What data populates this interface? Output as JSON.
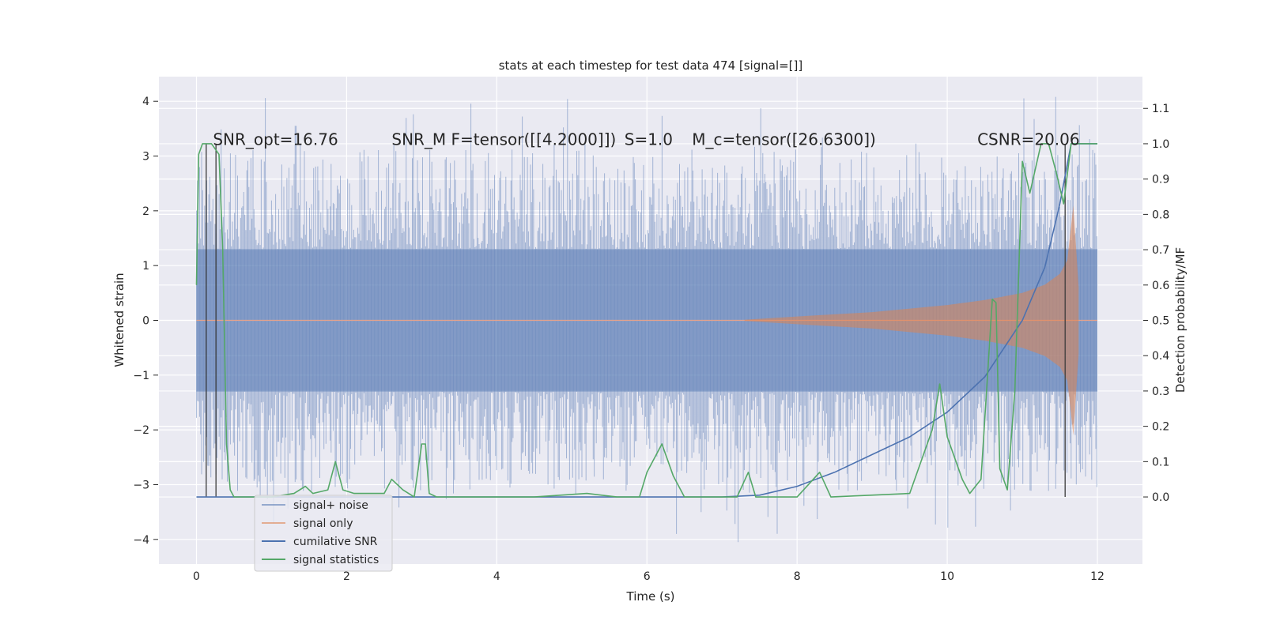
{
  "chart_data": {
    "type": "line",
    "title": "stats at each timestep for test data 474 [signal=[]]",
    "xlabel": "Time (s)",
    "ylabel": "Whitened strain",
    "y2label": "Detection probability/MF",
    "xlim": [
      -0.5,
      12.6
    ],
    "ylim": [
      -4.45,
      4.45
    ],
    "y2lim": [
      -0.19,
      1.19
    ],
    "x_ticks": [
      0,
      2,
      4,
      6,
      8,
      10,
      12
    ],
    "y_ticks": [
      -4,
      -3,
      -2,
      -1,
      0,
      1,
      2,
      3,
      4
    ],
    "y2_ticks": [
      0.0,
      0.1,
      0.2,
      0.3,
      0.4,
      0.5,
      0.6,
      0.7,
      0.8,
      0.9,
      1.0,
      1.1
    ],
    "x_tick_labels": [
      "0",
      "2",
      "4",
      "6",
      "8",
      "10",
      "12"
    ],
    "y_tick_labels": [
      "−4",
      "−3",
      "−2",
      "−1",
      "0",
      "1",
      "2",
      "3",
      "4"
    ],
    "y2_tick_labels": [
      "0.0",
      "0.1",
      "0.2",
      "0.3",
      "0.4",
      "0.5",
      "0.6",
      "0.7",
      "0.8",
      "0.9",
      "1.0",
      "1.1"
    ],
    "grid": true,
    "legend_placement": "lower-left",
    "annotations": [
      {
        "text": "SNR_opt=16.76",
        "x": 0.22
      },
      {
        "text": "SNR_M F=tensor([[4.2000]])",
        "x": 2.6
      },
      {
        "text": "S=1.0",
        "x": 5.7
      },
      {
        "text": "M_c=tensor([26.6300])",
        "x": 6.6
      },
      {
        "text": "CSNR=20.06",
        "x": 10.4
      }
    ],
    "annotation_y": 3.3,
    "vertical_markers_x": [
      0.13,
      0.26,
      11.57
    ],
    "series": [
      {
        "name": "signal+ noise",
        "axis": "left",
        "color": "#4c72b0",
        "envelope": {
          "x_start": 0.0,
          "x_end": 12.0,
          "core_amplitude": 1.3,
          "spike_max": 4.1
        }
      },
      {
        "name": "signal only",
        "axis": "left",
        "color": "#dd8452",
        "envelope": {
          "x": [
            7.3,
            8,
            9,
            10,
            10.5,
            11,
            11.3,
            11.5,
            11.6,
            11.68,
            11.75
          ],
          "amp": [
            0.01,
            0.07,
            0.15,
            0.28,
            0.37,
            0.5,
            0.65,
            0.85,
            1.1,
            2.1,
            0.6
          ]
        }
      },
      {
        "name": "cumilative SNR",
        "axis": "right",
        "color": "#4c72b0",
        "x": [
          0,
          7.0,
          7.5,
          8.0,
          8.5,
          9.0,
          9.5,
          10.0,
          10.5,
          11.0,
          11.3,
          11.5,
          11.65,
          11.7,
          12.0
        ],
        "y": [
          0,
          0,
          0.005,
          0.03,
          0.07,
          0.12,
          0.17,
          0.24,
          0.34,
          0.5,
          0.65,
          0.83,
          1.0,
          1.0,
          1.0
        ]
      },
      {
        "name": "signal statistics",
        "axis": "right",
        "color": "#55a868",
        "x": [
          0.0,
          0.03,
          0.08,
          0.13,
          0.2,
          0.3,
          0.35,
          0.4,
          0.45,
          0.5,
          0.6,
          1.0,
          1.3,
          1.45,
          1.55,
          1.75,
          1.85,
          1.95,
          2.1,
          2.3,
          2.5,
          2.6,
          2.75,
          2.9,
          3.0,
          3.05,
          3.1,
          3.2,
          4.5,
          5.2,
          5.6,
          5.9,
          6.0,
          6.2,
          6.35,
          6.5,
          6.6,
          6.9,
          7.2,
          7.35,
          7.45,
          8.0,
          8.3,
          8.45,
          9.5,
          9.8,
          9.9,
          10.0,
          10.2,
          10.3,
          10.45,
          10.6,
          10.65,
          10.7,
          10.8,
          10.9,
          11.0,
          11.1,
          11.25,
          11.35,
          11.45,
          11.55,
          11.65,
          12.0
        ],
        "y": [
          0.6,
          0.97,
          1.0,
          1.0,
          1.0,
          0.97,
          0.7,
          0.15,
          0.02,
          0.0,
          0.0,
          0.0,
          0.01,
          0.03,
          0.01,
          0.02,
          0.1,
          0.02,
          0.01,
          0.01,
          0.01,
          0.05,
          0.02,
          0.0,
          0.15,
          0.15,
          0.01,
          0.0,
          0.0,
          0.01,
          0.0,
          0.0,
          0.07,
          0.15,
          0.06,
          0.0,
          0.0,
          0.0,
          0.0,
          0.07,
          0.0,
          0.0,
          0.07,
          0.0,
          0.01,
          0.19,
          0.32,
          0.17,
          0.05,
          0.01,
          0.05,
          0.56,
          0.55,
          0.08,
          0.02,
          0.3,
          0.95,
          0.86,
          1.0,
          1.0,
          0.92,
          0.83,
          1.0,
          1.0
        ]
      }
    ]
  }
}
